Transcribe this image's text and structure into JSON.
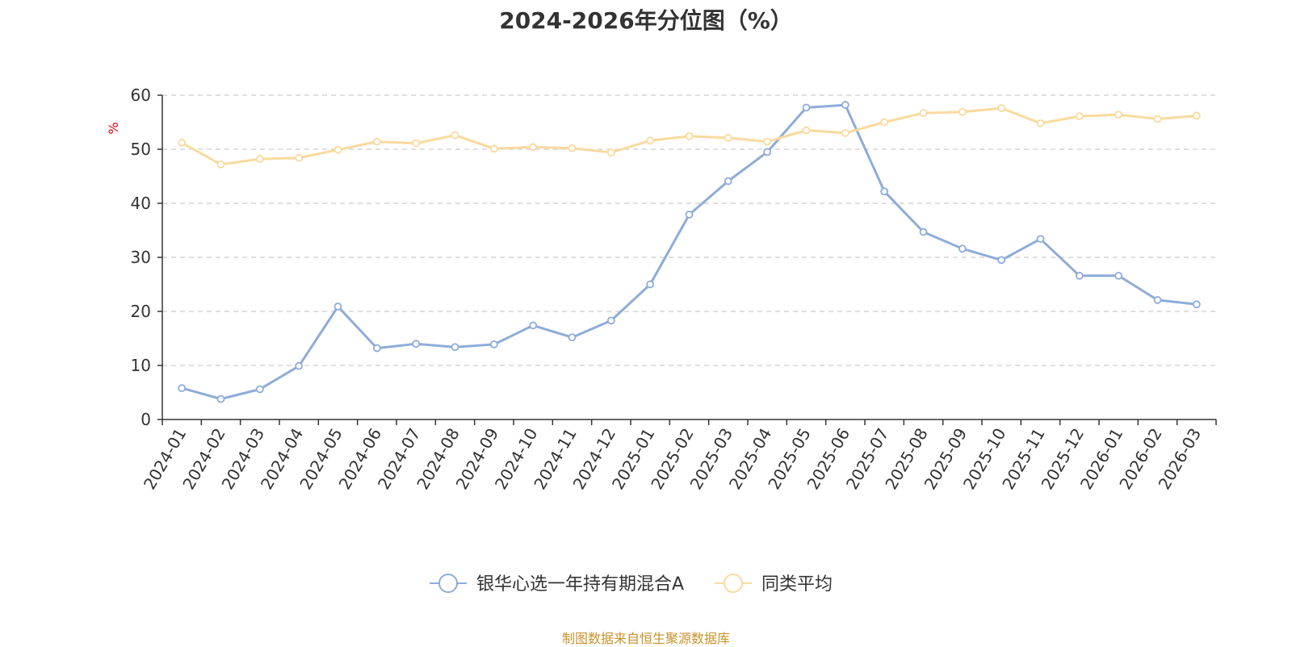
{
  "source_note": "制图数据来自恒生聚源数据库",
  "chart_data": {
    "type": "line",
    "title": "2024-2026年分位图（%）",
    "ylabel": "%",
    "xlabel": "",
    "ylim": [
      0,
      60
    ],
    "yticks": [
      0,
      10,
      20,
      30,
      40,
      50,
      60
    ],
    "grid": "horizontal-dashed",
    "legend_position": "bottom-center",
    "categories": [
      "2024-01",
      "2024-02",
      "2024-03",
      "2024-04",
      "2024-05",
      "2024-06",
      "2024-07",
      "2024-08",
      "2024-09",
      "2024-10",
      "2024-11",
      "2024-12",
      "2025-01",
      "2025-02",
      "2025-03",
      "2025-04",
      "2025-05",
      "2025-06",
      "2025-07",
      "2025-08",
      "2025-09",
      "2025-10",
      "2025-11",
      "2025-12",
      "2026-01",
      "2026-02",
      "2026-03"
    ],
    "series": [
      {
        "name": "银华心选一年持有期混合A",
        "color": "#8eacd8",
        "values": [
          5.8,
          3.8,
          5.6,
          9.9,
          20.9,
          13.2,
          14.0,
          13.4,
          13.9,
          17.4,
          15.2,
          18.3,
          25.0,
          37.9,
          44.1,
          49.5,
          57.7,
          58.2,
          42.2,
          34.7,
          31.6,
          29.5,
          33.4,
          26.6,
          26.6,
          22.1,
          21.3
        ]
      },
      {
        "name": "同类平均",
        "color": "#f9da9e",
        "values": [
          51.2,
          47.2,
          48.2,
          48.4,
          49.9,
          51.4,
          51.1,
          52.6,
          50.1,
          50.4,
          50.2,
          49.4,
          51.6,
          52.4,
          52.1,
          51.4,
          53.5,
          53.0,
          55.0,
          56.7,
          56.9,
          57.6,
          54.8,
          56.1,
          56.4,
          55.6,
          56.2
        ]
      }
    ]
  }
}
